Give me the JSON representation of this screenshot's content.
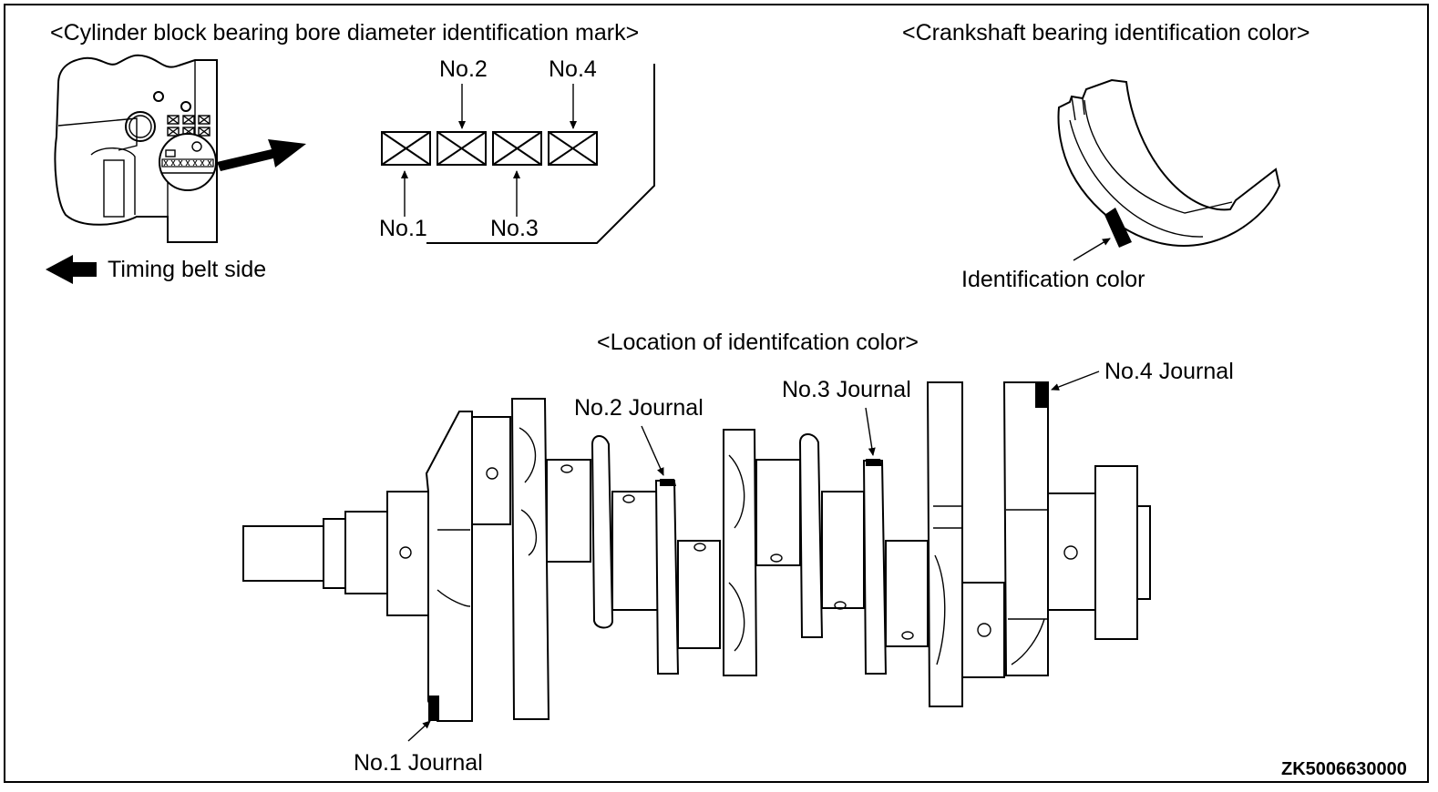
{
  "headings": {
    "cylinder_block": "<Cylinder block bearing bore diameter identification mark>",
    "crankshaft_bearing": "<Crankshaft bearing identification color>",
    "location": "<Location of identifcation color>"
  },
  "timing_belt": "Timing belt side",
  "bore_marks": [
    "No.1",
    "No.2",
    "No.3",
    "No.4"
  ],
  "bearing_callout": "Identification color",
  "journals": [
    "No.1 Journal",
    "No.2 Journal",
    "No.3 Journal",
    "No.4 Journal"
  ],
  "figure_code": "ZK5006630000",
  "colors": {
    "ink": "#000000",
    "background": "#ffffff"
  }
}
